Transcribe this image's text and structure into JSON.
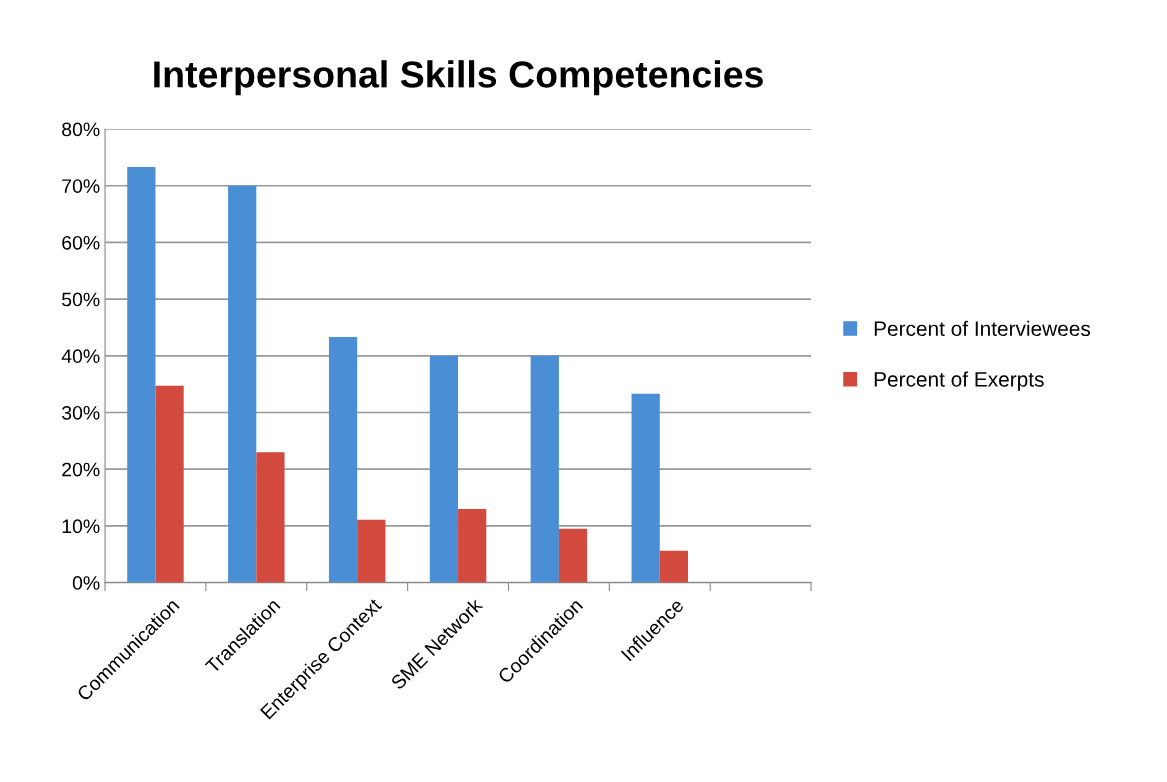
{
  "chart_data": {
    "type": "bar",
    "title": "Interpersonal Skills Competencies",
    "categories": [
      "Communication",
      "Translation",
      "Enterprise Context",
      "SME Network",
      "Coordination",
      "Influence",
      null
    ],
    "series": [
      {
        "name": "Percent of Interviewees",
        "color": "#4a8fd6",
        "values": [
          73.3,
          70.0,
          43.3,
          40.0,
          40.0,
          33.3,
          null
        ]
      },
      {
        "name": "Percent of Exerpts",
        "color": "#d2493d",
        "values": [
          34.7,
          23.0,
          11.1,
          13.0,
          9.5,
          5.6,
          null
        ]
      }
    ],
    "ylim": [
      0,
      80
    ],
    "yticks": [
      {
        "value": 0,
        "label": "0%"
      },
      {
        "value": 10,
        "label": "10%"
      },
      {
        "value": 20,
        "label": "20%"
      },
      {
        "value": 30,
        "label": "30%"
      },
      {
        "value": 40,
        "label": "40%"
      },
      {
        "value": 50,
        "label": "50%"
      },
      {
        "value": 60,
        "label": "60%"
      },
      {
        "value": 70,
        "label": "70%"
      },
      {
        "value": 80,
        "label": "80%"
      }
    ],
    "grid": "y",
    "legend": "right"
  }
}
